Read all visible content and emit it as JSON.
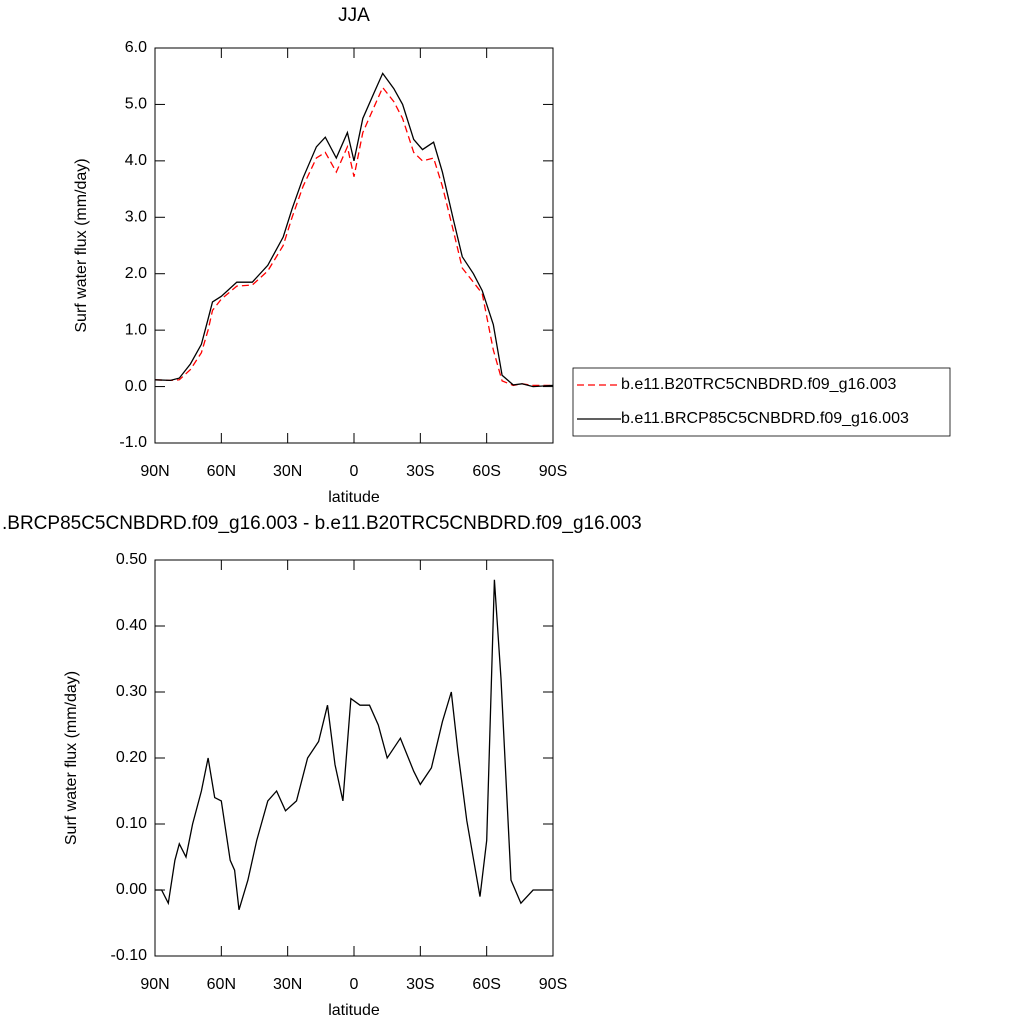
{
  "chart_data": [
    {
      "type": "line",
      "title": "JJA",
      "ylabel": "Surf water flux (mm/day)",
      "xlabel": "latitude",
      "xlim": [
        90,
        -90
      ],
      "xticks": [
        {
          "value": 90,
          "label": "90N"
        },
        {
          "value": 60,
          "label": "60N"
        },
        {
          "value": 30,
          "label": "30N"
        },
        0,
        {
          "value": -30,
          "label": "30S"
        },
        {
          "value": -60,
          "label": "60S"
        },
        {
          "value": -90,
          "label": "90S"
        }
      ],
      "ylim": [
        -1,
        6
      ],
      "yticks": [
        {
          "value": -1,
          "label": "-1.0"
        },
        {
          "value": 0,
          "label": "0.0"
        },
        {
          "value": 1,
          "label": "1.0"
        },
        {
          "value": 2,
          "label": "2.0"
        },
        {
          "value": 3,
          "label": "3.0"
        },
        {
          "value": 4,
          "label": "4.0"
        },
        {
          "value": 5,
          "label": "5.0"
        },
        {
          "value": 6,
          "label": "6.0"
        }
      ],
      "legend": "right",
      "x": [
        90,
        83,
        79,
        74,
        69,
        66,
        64,
        60,
        53,
        46,
        39,
        32,
        28,
        23,
        17,
        13,
        8,
        3,
        0,
        -4,
        -9,
        -13,
        -18,
        -22,
        -27,
        -31,
        -36,
        -40,
        -45,
        -49,
        -54,
        -58,
        -63,
        -67,
        -72,
        -76,
        -81,
        -90
      ],
      "series": [
        {
          "name": "b.e11.B20TRC5CNBDRD.f09_g16.003",
          "color": "#ff0000",
          "linestyle": "dashed",
          "values": [
            0.12,
            0.11,
            0.12,
            0.3,
            0.6,
            1.0,
            1.35,
            1.55,
            1.78,
            1.8,
            2.05,
            2.5,
            3.0,
            3.55,
            4.05,
            4.15,
            3.8,
            4.25,
            3.72,
            4.5,
            4.95,
            5.3,
            5.05,
            4.75,
            4.15,
            4.0,
            4.05,
            3.55,
            2.75,
            2.1,
            1.85,
            1.65,
            0.65,
            0.1,
            0.02,
            0.05,
            0.02,
            0.02
          ]
        },
        {
          "name": "b.e11.BRCP85C5CNBDRD.f09_g16.003",
          "color": "#000000",
          "linestyle": "solid",
          "values": [
            0.12,
            0.11,
            0.15,
            0.4,
            0.75,
            1.2,
            1.5,
            1.6,
            1.85,
            1.85,
            2.15,
            2.65,
            3.15,
            3.7,
            4.25,
            4.42,
            4.05,
            4.5,
            4.0,
            4.75,
            5.2,
            5.55,
            5.28,
            5.0,
            4.38,
            4.2,
            4.33,
            3.8,
            2.95,
            2.3,
            2.0,
            1.7,
            1.1,
            0.2,
            0.03,
            0.05,
            0.0,
            0.02
          ]
        }
      ]
    },
    {
      "type": "line",
      "title": ".BRCP85C5CNBDRD.f09_g16.003 - b.e11.B20TRC5CNBDRD.f09_g16.003",
      "ylabel": "Surf water flux (mm/day)",
      "xlabel": "latitude",
      "xlim": [
        90,
        -90
      ],
      "xticks": [
        {
          "value": 90,
          "label": "90N"
        },
        {
          "value": 60,
          "label": "60N"
        },
        {
          "value": 30,
          "label": "30N"
        },
        0,
        {
          "value": -30,
          "label": "30S"
        },
        {
          "value": -60,
          "label": "60S"
        },
        {
          "value": -90,
          "label": "90S"
        }
      ],
      "ylim": [
        -0.1,
        0.5
      ],
      "yticks": [
        {
          "value": -0.1,
          "label": "-0.10"
        },
        {
          "value": 0,
          "label": "0.00"
        },
        {
          "value": 0.1,
          "label": "0.10"
        },
        {
          "value": 0.2,
          "label": "0.20"
        },
        {
          "value": 0.3,
          "label": "0.30"
        },
        {
          "value": 0.4,
          "label": "0.40"
        },
        {
          "value": 0.5,
          "label": "0.50"
        }
      ],
      "x": [
        90,
        87,
        84,
        81,
        79,
        76,
        73,
        69,
        66,
        63,
        60,
        56,
        54,
        52,
        48,
        44,
        39,
        35,
        31,
        26,
        21,
        16,
        12,
        8.6,
        5,
        1.4,
        -2.7,
        -7,
        -11,
        -15,
        -21,
        -27,
        -30,
        -35,
        -40,
        -44,
        -47,
        -51,
        -57,
        -60,
        -63.5,
        -66.5,
        -71,
        -75.5,
        -81,
        -90
      ],
      "series": [
        {
          "color": "#000000",
          "linestyle": "solid",
          "values": [
            0.0,
            0.0,
            -0.02,
            0.045,
            0.07,
            0.05,
            0.1,
            0.15,
            0.2,
            0.14,
            0.135,
            0.045,
            0.03,
            -0.03,
            0.015,
            0.075,
            0.135,
            0.15,
            0.12,
            0.135,
            0.2,
            0.225,
            0.28,
            0.19,
            0.135,
            0.29,
            0.28,
            0.28,
            0.25,
            0.2,
            0.23,
            0.18,
            0.16,
            0.185,
            0.255,
            0.3,
            0.21,
            0.105,
            -0.01,
            0.075,
            0.47,
            0.32,
            0.015,
            -0.02,
            0.0,
            0.0
          ]
        }
      ]
    }
  ]
}
